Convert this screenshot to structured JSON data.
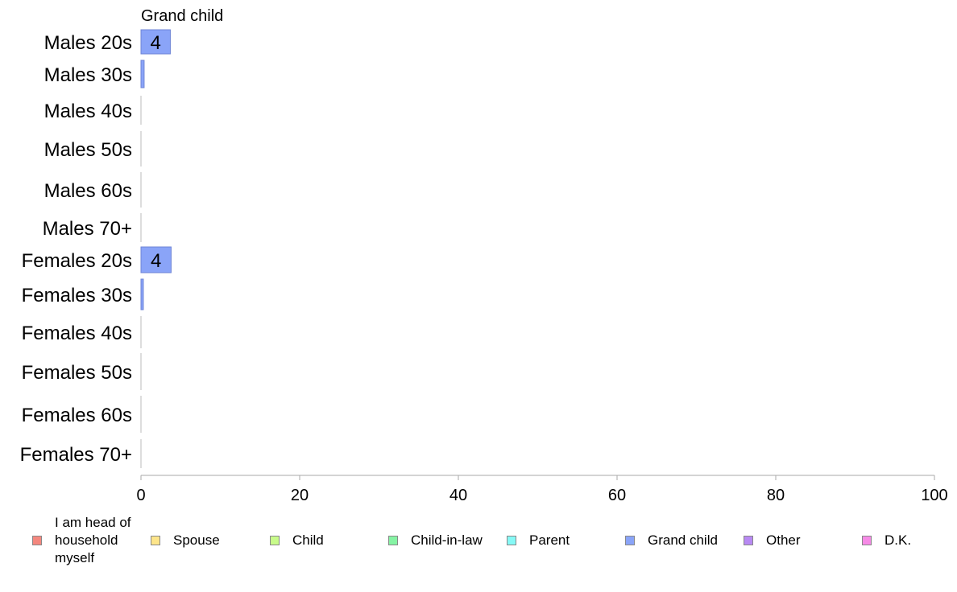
{
  "chart_data": {
    "type": "bar",
    "orientation": "horizontal",
    "stacked": true,
    "panel_title": "Grand child",
    "categories": [
      "Males 20s",
      "Males 30s",
      "Males 40s",
      "Males 50s",
      "Males 60s",
      "Males 70+",
      "Females 20s",
      "Females 30s",
      "Females 40s",
      "Females 50s",
      "Females 60s",
      "Females 70+"
    ],
    "series": [
      {
        "name": "Grand child",
        "color": "#8aa4f8",
        "values": [
          3.7,
          0.4,
          0,
          0,
          0,
          0,
          3.8,
          0.3,
          0,
          0,
          0,
          0
        ],
        "data_labels": [
          "4",
          "",
          "",
          "",
          "",
          "",
          "4",
          "",
          "",
          "",
          "",
          ""
        ]
      }
    ],
    "xlim": [
      0,
      100
    ],
    "xticks": [
      "0",
      "20",
      "40",
      "60",
      "80",
      "100"
    ],
    "grid": false
  },
  "legend": [
    {
      "label": "I am head of\nhousehold\nmyself",
      "color": "#f4877e"
    },
    {
      "label": "Spouse",
      "color": "#fde58a"
    },
    {
      "label": "Child",
      "color": "#c8fb8a"
    },
    {
      "label": "Child-in-law",
      "color": "#86f3a4"
    },
    {
      "label": "Parent",
      "color": "#86f9f6"
    },
    {
      "label": "Grand child",
      "color": "#8aa4f8"
    },
    {
      "label": "Other",
      "color": "#b889f3"
    },
    {
      "label": "D.K.",
      "color": "#f68ae6"
    }
  ]
}
